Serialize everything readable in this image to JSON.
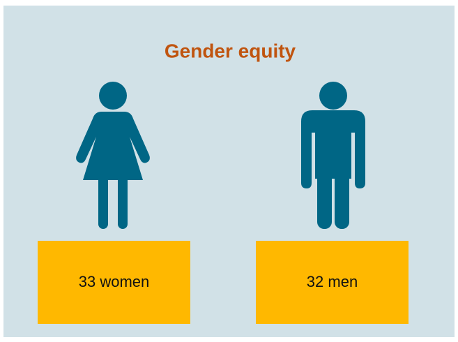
{
  "title": "Gender equity",
  "cards": [
    {
      "label": "33 women"
    },
    {
      "label": "32 men"
    }
  ]
}
